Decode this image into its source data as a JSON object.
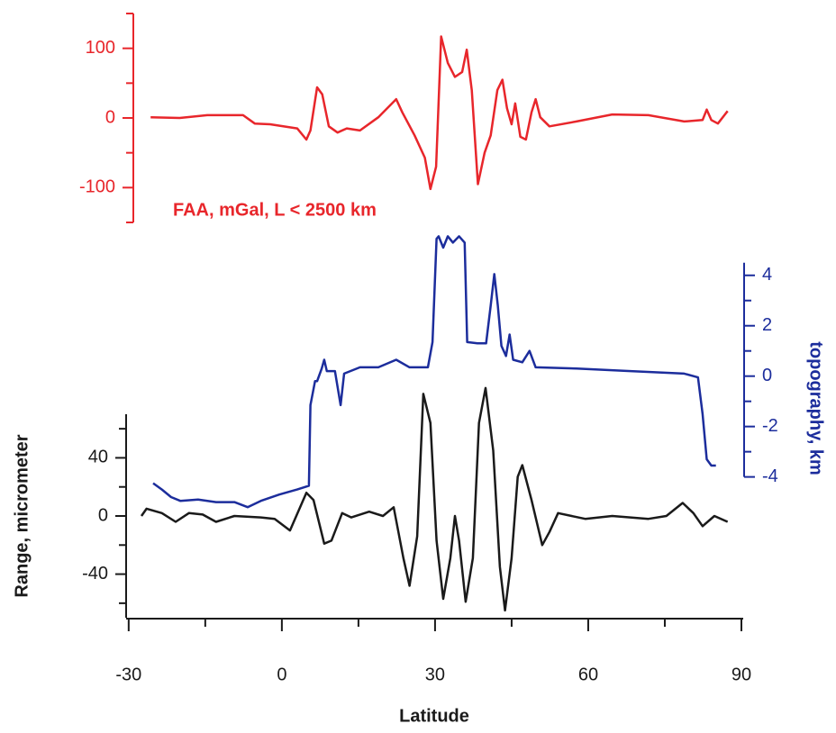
{
  "chart_data": [
    {
      "type": "line",
      "color": "#e8262b",
      "annotation": "FAA, mGal,  L < 2500 km",
      "axis_side": "left",
      "xlim": [
        -30.5,
        90
      ],
      "ylim": [
        -150,
        150
      ],
      "yticks": [
        -100,
        0,
        100
      ],
      "minor_yticks": [
        -150,
        -50,
        50,
        150
      ],
      "x": [
        -25.7,
        -20,
        -14.6,
        -7.6,
        -5.3,
        -2.3,
        3,
        4.8,
        5.6,
        6.9,
        7.9,
        9.2,
        10.9,
        12.7,
        15.3,
        18.9,
        22.4,
        23.6,
        26,
        28,
        29.1,
        30.2,
        31.2,
        32.5,
        33.9,
        35.3,
        36.2,
        37.2,
        38.4,
        39.7,
        40.9,
        42.2,
        43.2,
        44.1,
        45,
        45.7,
        46.7,
        47.8,
        48.9,
        49.7,
        50.6,
        52.4,
        57.7,
        64.7,
        71.8,
        78.8,
        82.4,
        83.2,
        84.1,
        85.4,
        87.3
      ],
      "values": [
        1,
        0,
        4,
        4,
        -8,
        -9,
        -15,
        -31,
        -18,
        44,
        34,
        -12,
        -21,
        -15,
        -18,
        1,
        27,
        8,
        -25,
        -57,
        -102,
        -70,
        117,
        79,
        59,
        66,
        98,
        40,
        -95,
        -50,
        -25,
        40,
        55,
        14,
        -9,
        21,
        -27,
        -31,
        8,
        27,
        1,
        -12,
        -5,
        5,
        4,
        -5,
        -3,
        12,
        -3,
        -8,
        10
      ]
    },
    {
      "type": "line",
      "color": "#1c2d9c",
      "ylabel": "topography, km",
      "axis_side": "right",
      "xlim": [
        -30.5,
        90
      ],
      "ylim": [
        -5.3,
        5.6
      ],
      "yticks": [
        -4,
        -2,
        0,
        2,
        4
      ],
      "minor_yticks": [
        -3,
        -1,
        1,
        3
      ],
      "x": [
        -25.2,
        -23.5,
        -21.7,
        -19.9,
        -16.4,
        -12.9,
        -9.3,
        -6.7,
        -4.1,
        -0.5,
        3,
        5.3,
        5.6,
        6.5,
        6.9,
        7.8,
        8.3,
        8.8,
        10.4,
        11.5,
        12.2,
        15.3,
        18.9,
        22.4,
        25,
        28.6,
        29.5,
        30.3,
        30.7,
        31.6,
        32.5,
        33.5,
        34.7,
        35.8,
        36.3,
        38.3,
        40,
        40.9,
        41.6,
        42.3,
        43,
        43.9,
        44.6,
        45.3,
        47.1,
        48.5,
        49.7,
        57.7,
        68.3,
        78.8,
        81.5,
        82.4,
        83.2,
        84.1,
        85
      ],
      "values": [
        -4.25,
        -4.5,
        -4.8,
        -4.95,
        -4.9,
        -5,
        -5,
        -5.2,
        -4.95,
        -4.7,
        -4.5,
        -4.35,
        -1.15,
        -0.2,
        -0.2,
        0.3,
        0.65,
        0.2,
        0.2,
        -1.15,
        0.1,
        0.35,
        0.35,
        0.65,
        0.35,
        0.35,
        1.35,
        5.45,
        5.55,
        5.1,
        5.55,
        5.3,
        5.55,
        5.3,
        1.35,
        1.3,
        1.3,
        2.8,
        4.05,
        2.8,
        1.2,
        0.8,
        1.65,
        0.65,
        0.55,
        1.0,
        0.35,
        0.3,
        0.2,
        0.1,
        -0.05,
        -1.5,
        -3.3,
        -3.55,
        -3.55
      ]
    },
    {
      "type": "line",
      "color": "#1a1a1a",
      "ylabel": "Range, micrometer",
      "xlabel": "Latitude",
      "axis_side": "left",
      "xlim": [
        -30.5,
        90
      ],
      "xticks": [
        -30,
        0,
        30,
        60,
        90
      ],
      "minor_xticks": [
        -15,
        15,
        45,
        75
      ],
      "ylim": [
        -70,
        70
      ],
      "yticks": [
        -40,
        0,
        40
      ],
      "minor_yticks": [
        -60,
        -20,
        20,
        60
      ],
      "x": [
        -27.5,
        -26.5,
        -23.5,
        -20.8,
        -18.2,
        -15.5,
        -12.9,
        -9.3,
        -4.1,
        -1.4,
        1.6,
        4.8,
        6.2,
        8.3,
        9.7,
        11.8,
        13.6,
        17.1,
        19.8,
        21.9,
        23.8,
        25,
        26.5,
        27.7,
        29.1,
        30.3,
        31.6,
        33,
        33.9,
        34.7,
        36,
        37.4,
        38.6,
        39.9,
        41.4,
        42.7,
        43.7,
        45,
        46.2,
        47.1,
        48.9,
        51,
        52.4,
        54.1,
        59.4,
        64.7,
        71.8,
        75.3,
        78.5,
        80.6,
        82.4,
        84.7,
        87.3
      ],
      "values": [
        0,
        5,
        2,
        -4,
        2,
        1,
        -4,
        0,
        -1,
        -2,
        -10,
        16,
        11,
        -19,
        -17,
        2,
        -1,
        3,
        0,
        6,
        -29,
        -48,
        -14,
        84,
        64,
        -17,
        -57,
        -29,
        0,
        -17,
        -59,
        -29,
        64,
        88,
        45,
        -35,
        -65,
        -29,
        27,
        35,
        11,
        -20,
        -11,
        2,
        -2,
        0,
        -2,
        0,
        9,
        2,
        -7,
        0,
        -4
      ]
    }
  ]
}
